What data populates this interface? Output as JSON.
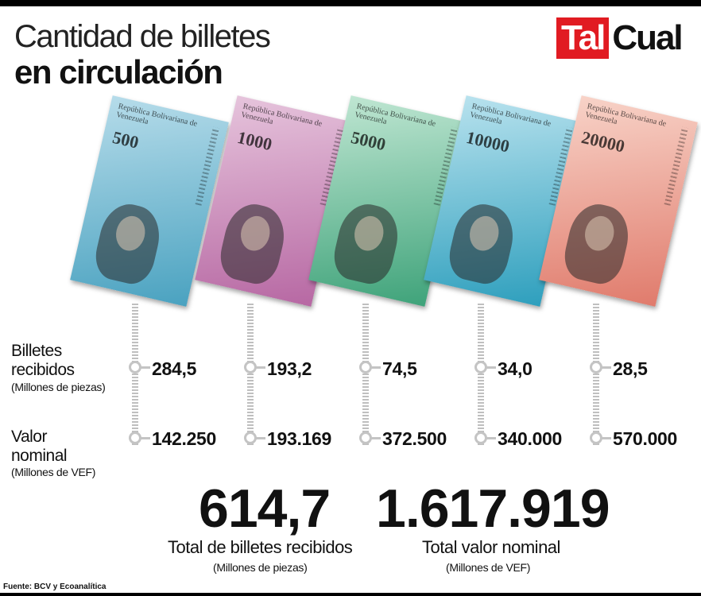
{
  "header": {
    "title_line1": "Cantidad de billetes",
    "title_line2": "en circulación",
    "logo_part1": "Tal",
    "logo_part2": "Cual",
    "logo_colors": {
      "red": "#e11b22",
      "dark": "#111111"
    }
  },
  "notes": [
    {
      "header": "República Bolivariana de Venezuela",
      "denomination": "500",
      "colors": [
        "#b6dcea",
        "#4aa2c0"
      ]
    },
    {
      "header": "República Bolivariana de Venezuela",
      "denomination": "1000",
      "colors": [
        "#e6c4dc",
        "#b768a3"
      ]
    },
    {
      "header": "República Bolivariana de Venezuela",
      "denomination": "5000",
      "colors": [
        "#bfe6d2",
        "#3fa37a"
      ]
    },
    {
      "header": "República Bolivariana de Venezuela",
      "denomination": "10000",
      "colors": [
        "#b8e2ee",
        "#2e9fbd"
      ]
    },
    {
      "header": "República Bolivariana de Venezuela",
      "denomination": "20000",
      "colors": [
        "#f8d3c8",
        "#e07b6c"
      ]
    }
  ],
  "rows": {
    "billetes": {
      "label_line1": "Billetes",
      "label_line2": "recibidos",
      "unit": "(Millones de piezas)",
      "values": [
        "284,5",
        "193,2",
        "74,5",
        "34,0",
        "28,5"
      ]
    },
    "valor": {
      "label_line1": "Valor",
      "label_line2": "nominal",
      "unit": "(Millones de VEF)",
      "values": [
        "142.250",
        "193.169",
        "372.500",
        "340.000",
        "570.000"
      ]
    }
  },
  "totals": {
    "billetes": {
      "value": "614,7",
      "label": "Total de billetes recibidos",
      "unit": "(Millones de piezas)"
    },
    "valor": {
      "value": "1.617.919",
      "label": "Total valor nominal",
      "unit": "(Millones de VEF)"
    }
  },
  "source": "Fuente: BCV y Ecoanalítica"
}
